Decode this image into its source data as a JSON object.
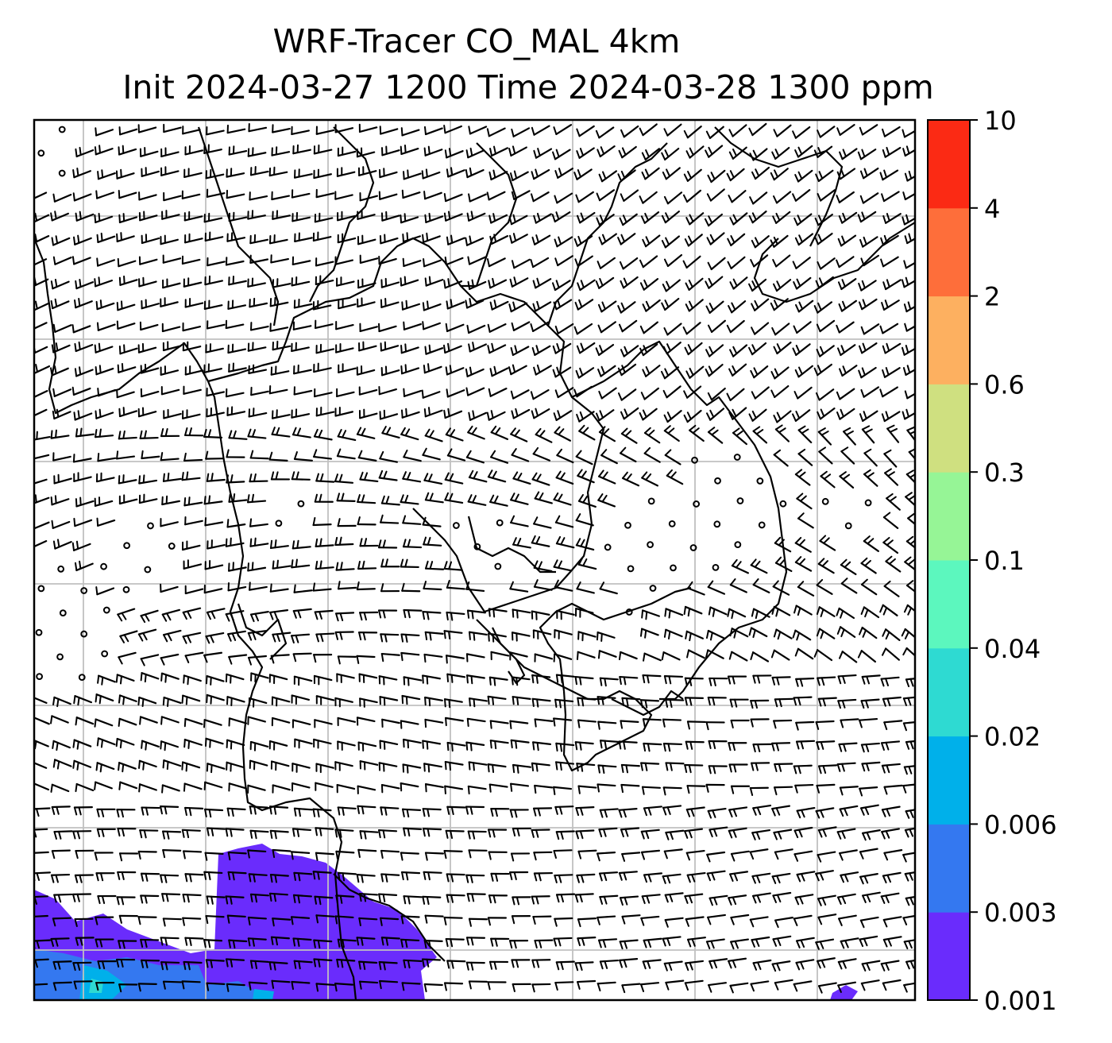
{
  "title": {
    "line1": "WRF-Tracer CO_MAL 4km",
    "line2": "Init 2024-03-27 1200 Time 2024-03-28 1300 ppm"
  },
  "colorbar": {
    "levels": [
      "0.001",
      "0.003",
      "0.006",
      "0.02",
      "0.04",
      "0.1",
      "0.3",
      "0.6",
      "2",
      "4",
      "10"
    ],
    "colors": [
      "#6a2cfc",
      "#3478f0",
      "#00b0ea",
      "#2edad2",
      "#5cf7be",
      "#96f596",
      "#cfe080",
      "#fdb060",
      "#fe6e3a",
      "#fb2a14"
    ]
  },
  "map": {
    "background": "#ffffff",
    "grid_color": "#c0c0c0",
    "coastline_color": "#000000",
    "wind_barbs": "black",
    "calm_markers": "circles"
  }
}
